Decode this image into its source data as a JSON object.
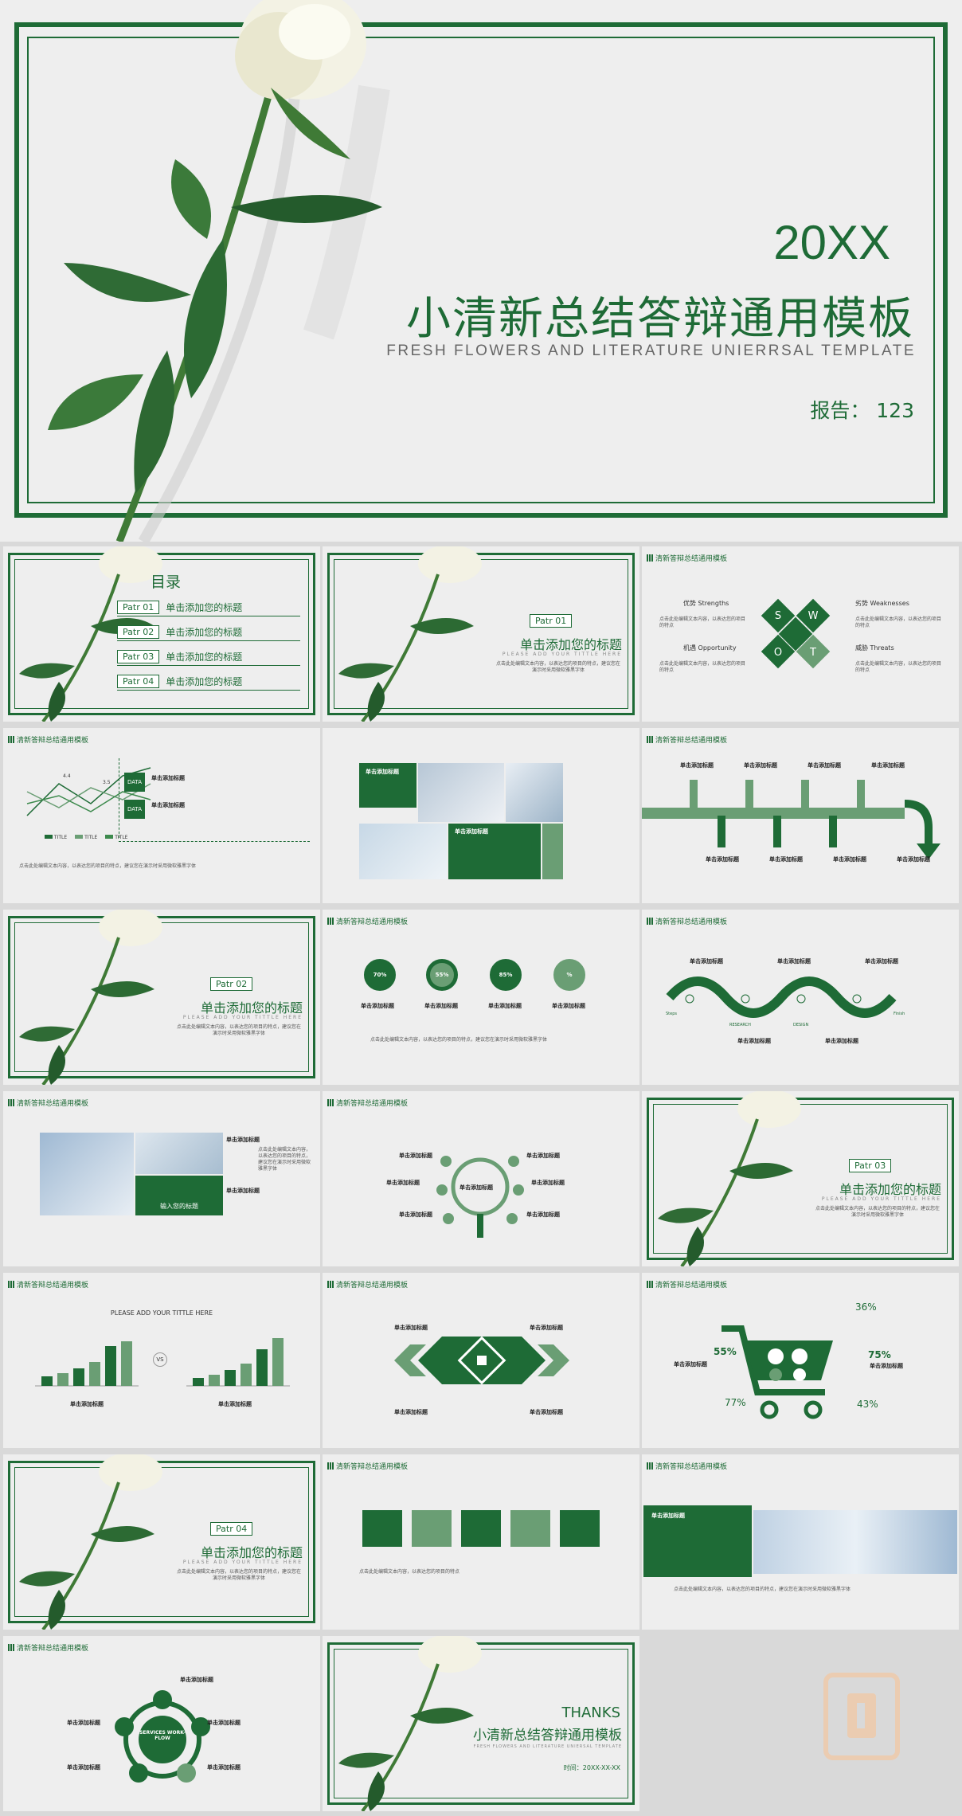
{
  "hero": {
    "year": "20XX",
    "title": "小清新总结答辩通用模板",
    "subtitle": "FRESH FLOWERS AND LITERATURE UNIERRSAL TEMPLATE",
    "reporter": "报告： 123"
  },
  "header_label": "清新答辩总结通用模板",
  "toc": {
    "title": "目录",
    "items": [
      {
        "tag": "Patr 01",
        "text": "单击添加您的标题"
      },
      {
        "tag": "Patr 02",
        "text": "单击添加您的标题"
      },
      {
        "tag": "Patr 03",
        "text": "单击添加您的标题"
      },
      {
        "tag": "Patr 04",
        "text": "单击添加您的标题"
      }
    ]
  },
  "section": {
    "title": "单击添加您的标题",
    "en": "PLEASE ADD YOUR TITTLE HERE",
    "desc": "点击此处编辑文本内容，以表达您的项目的特点，建议您在演示时采用微软雅黑字体",
    "tags": [
      "Patr 01",
      "Patr 02",
      "Patr 03",
      "Patr 04"
    ]
  },
  "swot": {
    "strengths": "优势 Strengths",
    "weaknesses": "劣势 Weaknesses",
    "opportunity": "机遇 Opportunity",
    "threats": "威胁 Threats",
    "letters": [
      "S",
      "W",
      "O",
      "T"
    ]
  },
  "common": {
    "click_title": "单击添加标题",
    "small_text": "点击此处编辑文本内容，以表达您的项目的特点",
    "data": "DATA",
    "title_word": "TITLE",
    "input_title": "输入您的标题",
    "chart_heading": "PLEASE ADD YOUR TITTLE HERE",
    "vs": "VS"
  },
  "line_chart_labels": [
    "4.4",
    "3.5"
  ],
  "donuts": [
    "70%",
    "55%",
    "85%",
    "%"
  ],
  "wave_words": [
    "Steps",
    "RESEARCH",
    "DESIGN",
    "Finish"
  ],
  "cart": {
    "pcts": [
      "36%",
      "55%",
      "75%",
      "77%",
      "43%"
    ]
  },
  "services": {
    "center": "SERVICES WORK-FLOW"
  },
  "thanks": {
    "word": "THANKS",
    "title": "小清新总结答辩通用模板",
    "en": "FRESH FLOWERS AND LITERATURE UNIERSAL TEMPLATE",
    "time": "时间：20XX-XX-XX"
  },
  "colors": {
    "accent": "#1e6b36",
    "light_green": "#6a9e74",
    "page_bg": "#eeeeee"
  }
}
